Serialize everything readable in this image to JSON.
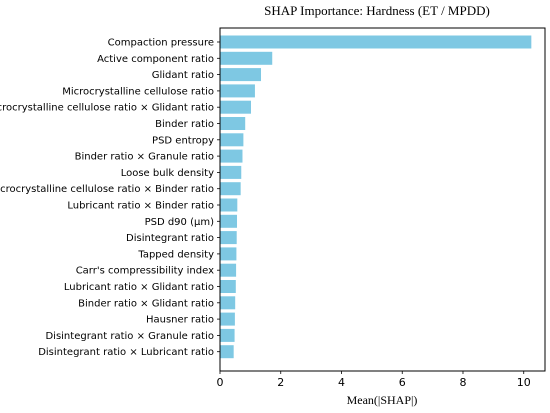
{
  "chart_data": {
    "type": "bar",
    "orientation": "horizontal",
    "title": "SHAP Importance: Hardness (ET / MPDD)",
    "xlabel": "Mean(|SHAP|)",
    "ylabel": "",
    "xlim": [
      0,
      10.7
    ],
    "xticks": [
      0,
      2,
      4,
      6,
      8,
      10
    ],
    "grid": false,
    "bar_color": "#7ec8e3",
    "categories": [
      "Compaction pressure",
      "Active component ratio",
      "Glidant ratio",
      "Microcrystalline cellulose ratio",
      "Microcrystalline cellulose ratio × Glidant ratio",
      "Binder ratio",
      "PSD entropy",
      "Binder ratio × Granule ratio",
      "Loose bulk density",
      "Microcrystalline cellulose ratio × Binder ratio",
      "Lubricant ratio × Binder ratio",
      "PSD d90 (μm)",
      "Disintegrant ratio",
      "Tapped density",
      "Carr's compressibility index",
      "Lubricant ratio × Glidant ratio",
      "Binder ratio × Glidant ratio",
      "Hausner ratio",
      "Disintegrant ratio × Granule ratio",
      "Disintegrant ratio × Lubricant ratio"
    ],
    "values": [
      10.25,
      1.72,
      1.35,
      1.15,
      1.02,
      0.83,
      0.77,
      0.74,
      0.7,
      0.68,
      0.57,
      0.56,
      0.55,
      0.54,
      0.53,
      0.52,
      0.5,
      0.49,
      0.48,
      0.45
    ]
  }
}
